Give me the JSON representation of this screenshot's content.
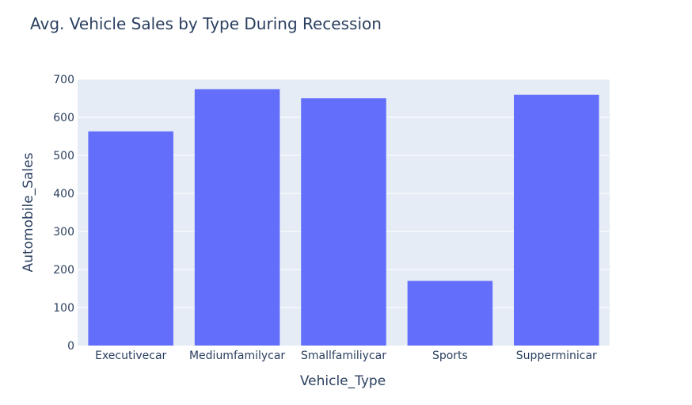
{
  "chart_data": {
    "type": "bar",
    "title": "Avg. Vehicle Sales by Type During Recession",
    "xlabel": "Vehicle_Type",
    "ylabel": "Automobile_Sales",
    "categories": [
      "Executivecar",
      "Mediumfamilycar",
      "Smallfamiliycar",
      "Sports",
      "Supperminicar"
    ],
    "values": [
      563,
      674,
      650,
      170,
      659
    ],
    "ylim": [
      0,
      700
    ],
    "yticks": [
      0,
      100,
      200,
      300,
      400,
      500,
      600,
      700
    ],
    "grid": true,
    "legend": "none"
  },
  "colors": {
    "bar": "#636efa",
    "plot_background": "#e5ecf6",
    "grid": "#ffffff",
    "text": "#2a3f5f"
  }
}
